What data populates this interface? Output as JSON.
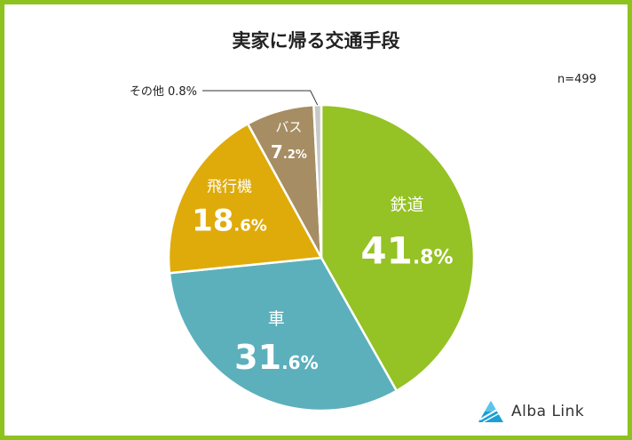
{
  "chart_data": {
    "type": "pie",
    "title": "実家に帰る交通手段",
    "sample_size": "n=499",
    "slices": [
      {
        "name": "鉄道",
        "value": 41.8,
        "int": "41",
        "dec": ".8%",
        "color": "#95c224"
      },
      {
        "name": "車",
        "value": 31.6,
        "int": "31",
        "dec": ".6%",
        "color": "#5bb0bc"
      },
      {
        "name": "飛行機",
        "value": 18.6,
        "int": "18",
        "dec": ".6%",
        "color": "#dfab0a"
      },
      {
        "name": "バス",
        "value": 7.2,
        "int": "7",
        "dec": ".2%",
        "color": "#a68d63"
      },
      {
        "name": "その他",
        "value": 0.8,
        "int": "",
        "dec": "",
        "label": "その他 0.8%",
        "color": "#c8c8c8"
      }
    ]
  },
  "brand": {
    "name": "Alba Link"
  }
}
